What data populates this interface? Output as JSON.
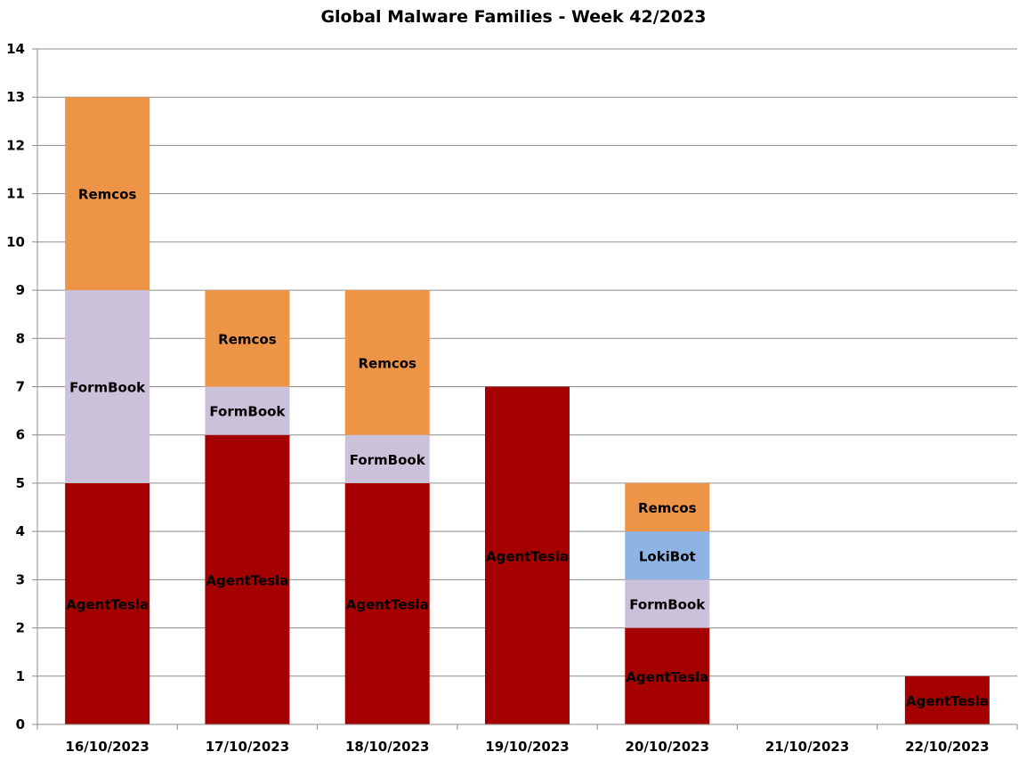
{
  "chart_data": {
    "type": "bar",
    "stacked": true,
    "title": "Global Malware Families - Week 42/2023",
    "xlabel": "",
    "ylabel": "",
    "ylim": [
      0,
      14
    ],
    "yticks": [
      0,
      1,
      2,
      3,
      4,
      5,
      6,
      7,
      8,
      9,
      10,
      11,
      12,
      13,
      14
    ],
    "grid": true,
    "legend": "none (segment labels inside bars)",
    "categories": [
      "16/10/2023",
      "17/10/2023",
      "18/10/2023",
      "19/10/2023",
      "20/10/2023",
      "21/10/2023",
      "22/10/2023"
    ],
    "series": [
      {
        "name": "AgentTesla",
        "color": "#a50000",
        "values": [
          5,
          6,
          5,
          7,
          2,
          0,
          1
        ]
      },
      {
        "name": "FormBook",
        "color": "#ccc1da",
        "values": [
          4,
          1,
          1,
          0,
          1,
          0,
          0
        ]
      },
      {
        "name": "LokiBot",
        "color": "#8eb4e3",
        "values": [
          0,
          0,
          0,
          0,
          1,
          0,
          0
        ]
      },
      {
        "name": "Remcos",
        "color": "#ed9447",
        "values": [
          4,
          2,
          3,
          0,
          1,
          0,
          0
        ]
      }
    ]
  }
}
